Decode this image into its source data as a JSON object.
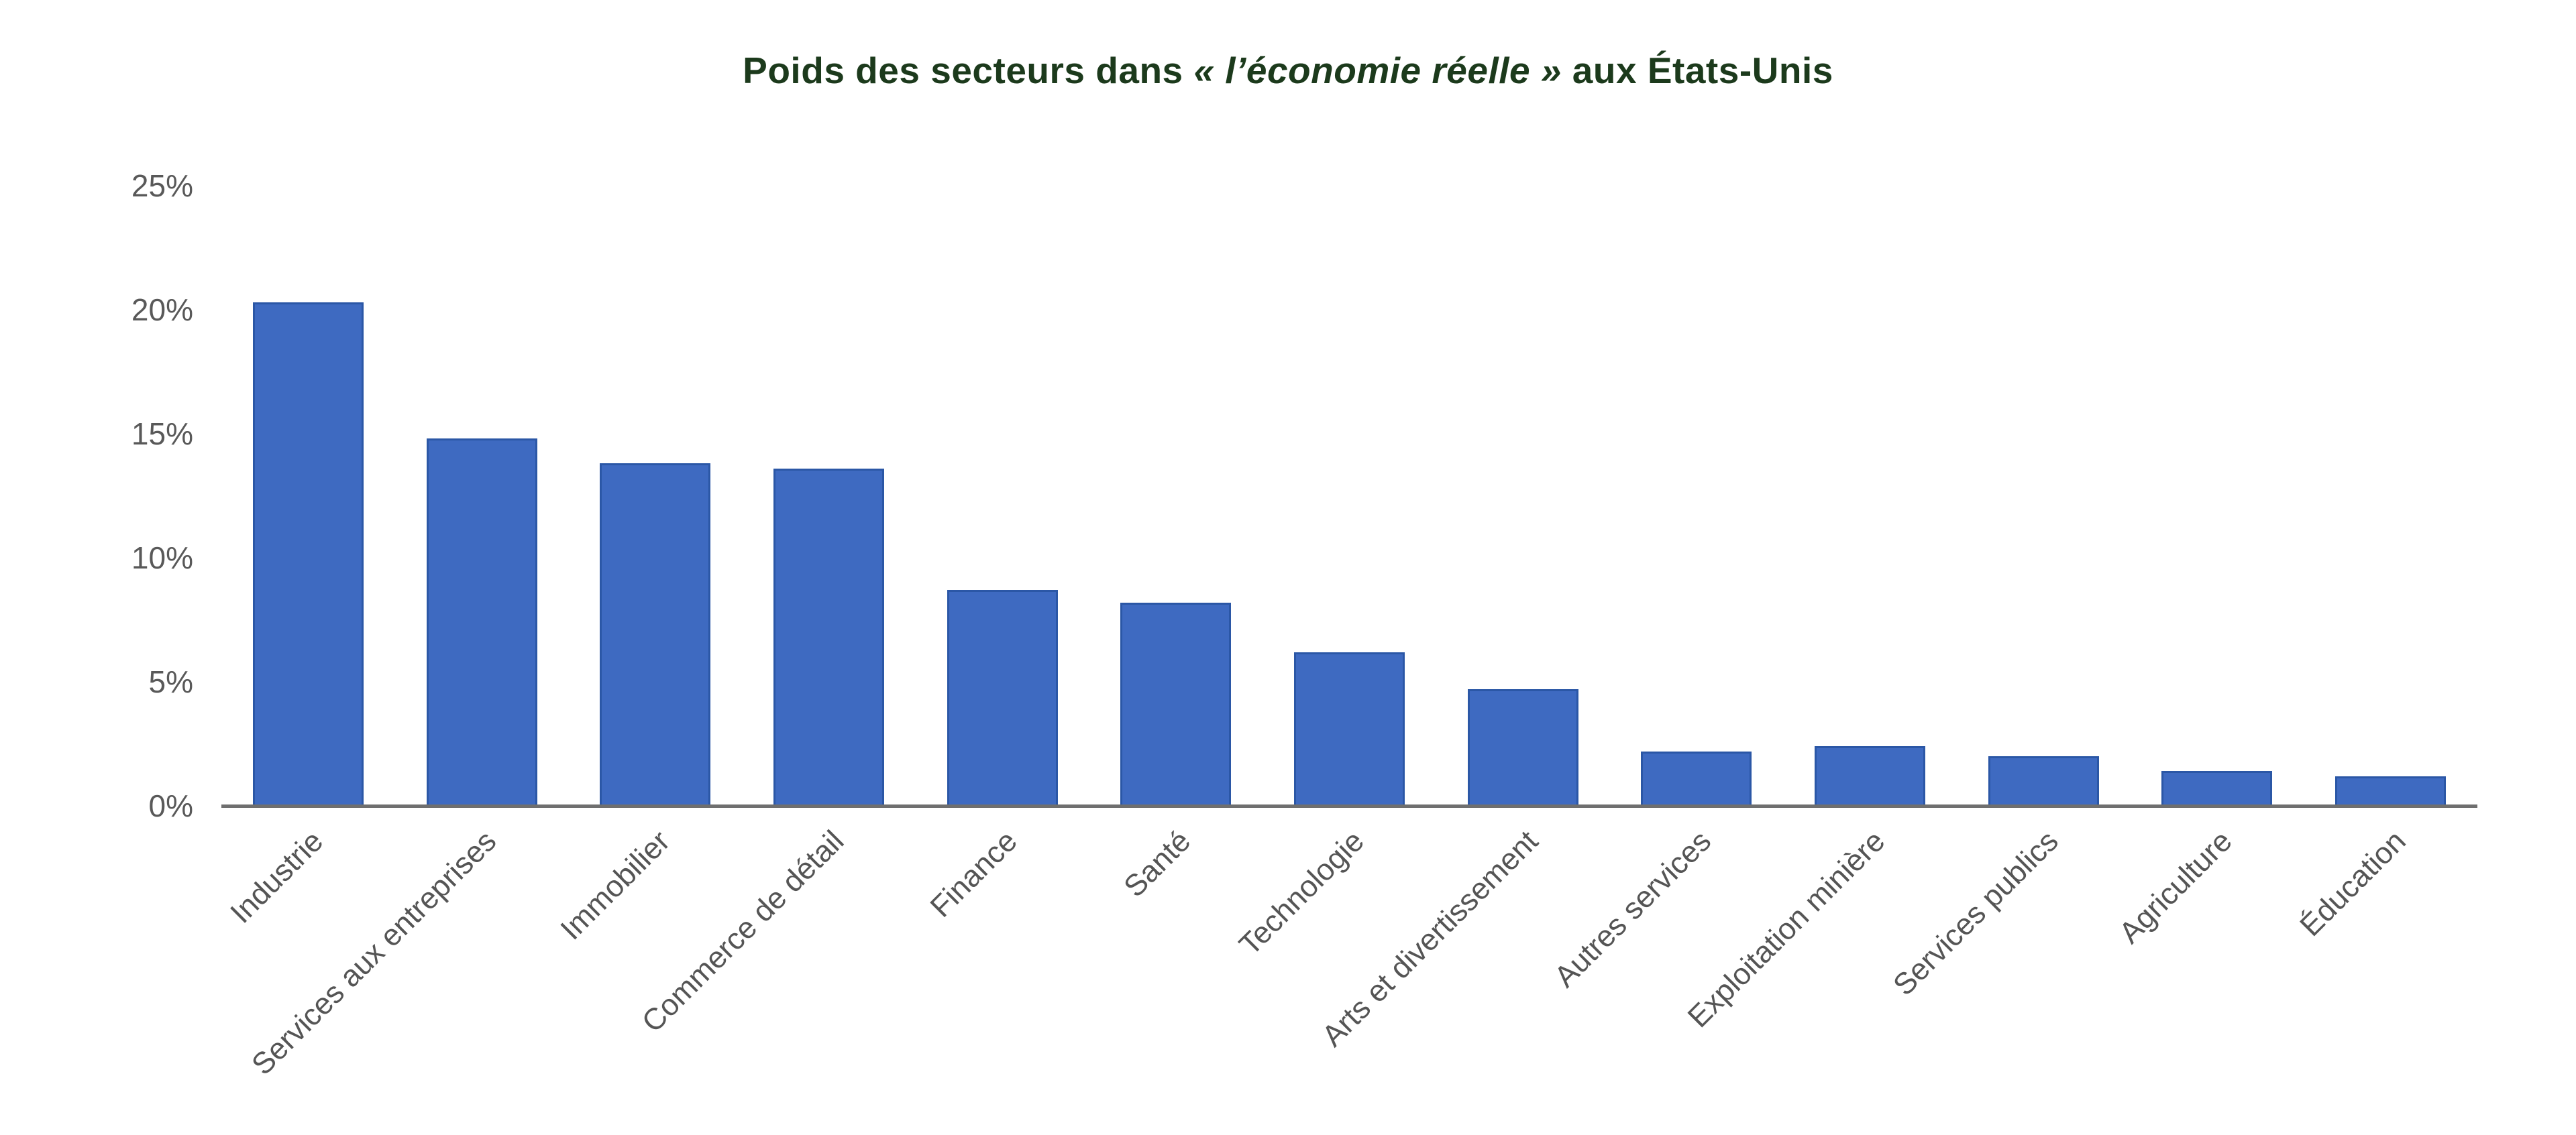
{
  "title": {
    "prefix": "Poids des secteurs dans ",
    "emphasis": "« l’économie réelle »",
    "suffix": " aux États-Unis"
  },
  "chart_data": {
    "type": "bar",
    "title": "Poids des secteurs dans « l’économie réelle » aux États-Unis",
    "categories": [
      "Industrie",
      "Services aux entreprises",
      "Immobilier",
      "Commerce de détail",
      "Finance",
      "Santé",
      "Technologie",
      "Arts et divertissement",
      "Autres services",
      "Exploitation minière",
      "Services publics",
      "Agriculture",
      "Éducation"
    ],
    "values": [
      20.3,
      14.8,
      13.8,
      13.6,
      8.7,
      8.2,
      6.2,
      4.7,
      2.2,
      2.4,
      2.0,
      1.4,
      1.2
    ],
    "unit": "%",
    "xlabel": "",
    "ylabel": "",
    "ylim": [
      0,
      25
    ],
    "ytick_values": [
      0,
      5,
      10,
      15,
      20,
      25
    ],
    "ytick_labels": [
      "0%",
      "5%",
      "10%",
      "15%",
      "20%",
      "25%"
    ],
    "grid": false,
    "legend": "none",
    "colors": {
      "bar_fill": "#3E6AC1",
      "bar_edge": "#2B57A6",
      "axis_line": "#6F6F6F",
      "ytick_text": "#595959",
      "xtick_text": "#555555",
      "title_text": "#1C3A1C",
      "background": "#FFFFFF"
    }
  }
}
